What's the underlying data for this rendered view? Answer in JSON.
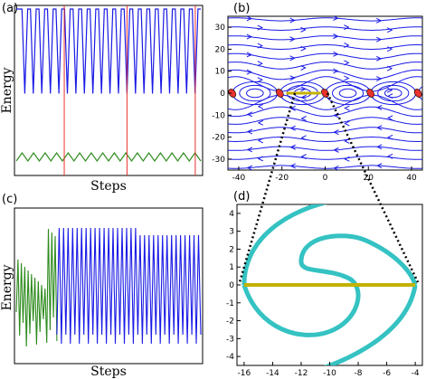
{
  "colors": {
    "blue": "#1a1ae6",
    "green": "#2e8b1e",
    "red": "#e8322e",
    "teal": "#35c2c2",
    "olive": "#c4b200",
    "frame": "#000000"
  },
  "chart_data": [
    {
      "panel": "(a)",
      "type": "line",
      "xlabel": "Steps",
      "ylabel": "Energy",
      "series": [
        {
          "color": "blue",
          "values": [
            1,
            1,
            1,
            0.15,
            1,
            1,
            0.15,
            1,
            1,
            0.15,
            1,
            1,
            0.15,
            1,
            1,
            0.15,
            1,
            1,
            0.15,
            1,
            1,
            0.15,
            1,
            1,
            0.15,
            1,
            1,
            0.15,
            1,
            1,
            0.15,
            1,
            1,
            0.15,
            1,
            1,
            0.15,
            1,
            1,
            0.15,
            1,
            1,
            0.15,
            1,
            1,
            0.15,
            1,
            1,
            0.15,
            1,
            1,
            0.15,
            1,
            1,
            0.15,
            1,
            1,
            0.15,
            1,
            1,
            0.15,
            1,
            1,
            0.15,
            1,
            1
          ]
        },
        {
          "color": "green",
          "values": [
            0.04,
            0.1,
            0.04,
            0.1,
            0.04,
            0.1,
            0.04,
            0.1,
            0.04,
            0.1,
            0.04,
            0.1,
            0.04,
            0.1,
            0.04,
            0.1,
            0.04,
            0.1,
            0.04,
            0.1,
            0.04,
            0.1,
            0.04,
            0.1,
            0.04,
            0.1,
            0.04,
            0.1,
            0.04,
            0.1,
            0.04,
            0.1,
            0.04
          ]
        }
      ],
      "vlines": [
        0.26,
        0.6,
        0.97
      ],
      "grid": false
    },
    {
      "panel": "(b)",
      "type": "streamplot",
      "xlim": [
        -45,
        45
      ],
      "ylim": [
        -35,
        35
      ],
      "xticks": [
        -40,
        -20,
        0,
        20,
        40
      ],
      "yticks": [
        -30,
        -20,
        -10,
        0,
        10,
        20,
        30
      ],
      "points": [
        {
          "x": -43,
          "y": 0
        },
        {
          "x": -21,
          "y": 0
        },
        {
          "x": 0,
          "y": 0
        },
        {
          "x": 21,
          "y": 0
        },
        {
          "x": 43,
          "y": 0
        }
      ],
      "segment": {
        "x": [
          -18,
          -2
        ],
        "y": 0
      },
      "grid": false
    },
    {
      "panel": "(c)",
      "type": "line",
      "xlabel": "Steps",
      "ylabel": "Energy",
      "series": [
        {
          "color": "green",
          "segment": "first",
          "share": 0.22
        },
        {
          "color": "blue",
          "segment": "rest",
          "share": 0.78
        }
      ],
      "grid": false
    },
    {
      "panel": "(d)",
      "type": "curve",
      "xlim": [
        -16.5,
        -3.5
      ],
      "ylim": [
        -4.5,
        4.5
      ],
      "xticks": [
        -16,
        -14,
        -12,
        -10,
        -8,
        -6,
        -4
      ],
      "yticks": [
        -4,
        -3,
        -2,
        -1,
        0,
        1,
        2,
        3,
        4
      ],
      "segment": {
        "x": [
          -16,
          -4
        ],
        "y": 0
      },
      "grid": false
    }
  ],
  "tick_labels": {
    "b_x": [
      "-40",
      "-20",
      "0",
      "20",
      "40"
    ],
    "b_y": [
      "30",
      "20",
      "10",
      "0",
      "-10",
      "-20",
      "-30"
    ],
    "d_x": [
      "-16",
      "-14",
      "-12",
      "-10",
      "-8",
      "-6",
      "-4"
    ],
    "d_y": [
      "4",
      "3",
      "2",
      "1",
      "0",
      "-1",
      "-2",
      "-3",
      "-4"
    ]
  },
  "labels": {
    "a": "(a)",
    "b": "(b)",
    "c": "(c)",
    "d": "(d)",
    "energy": "Energy",
    "steps": "Steps"
  }
}
